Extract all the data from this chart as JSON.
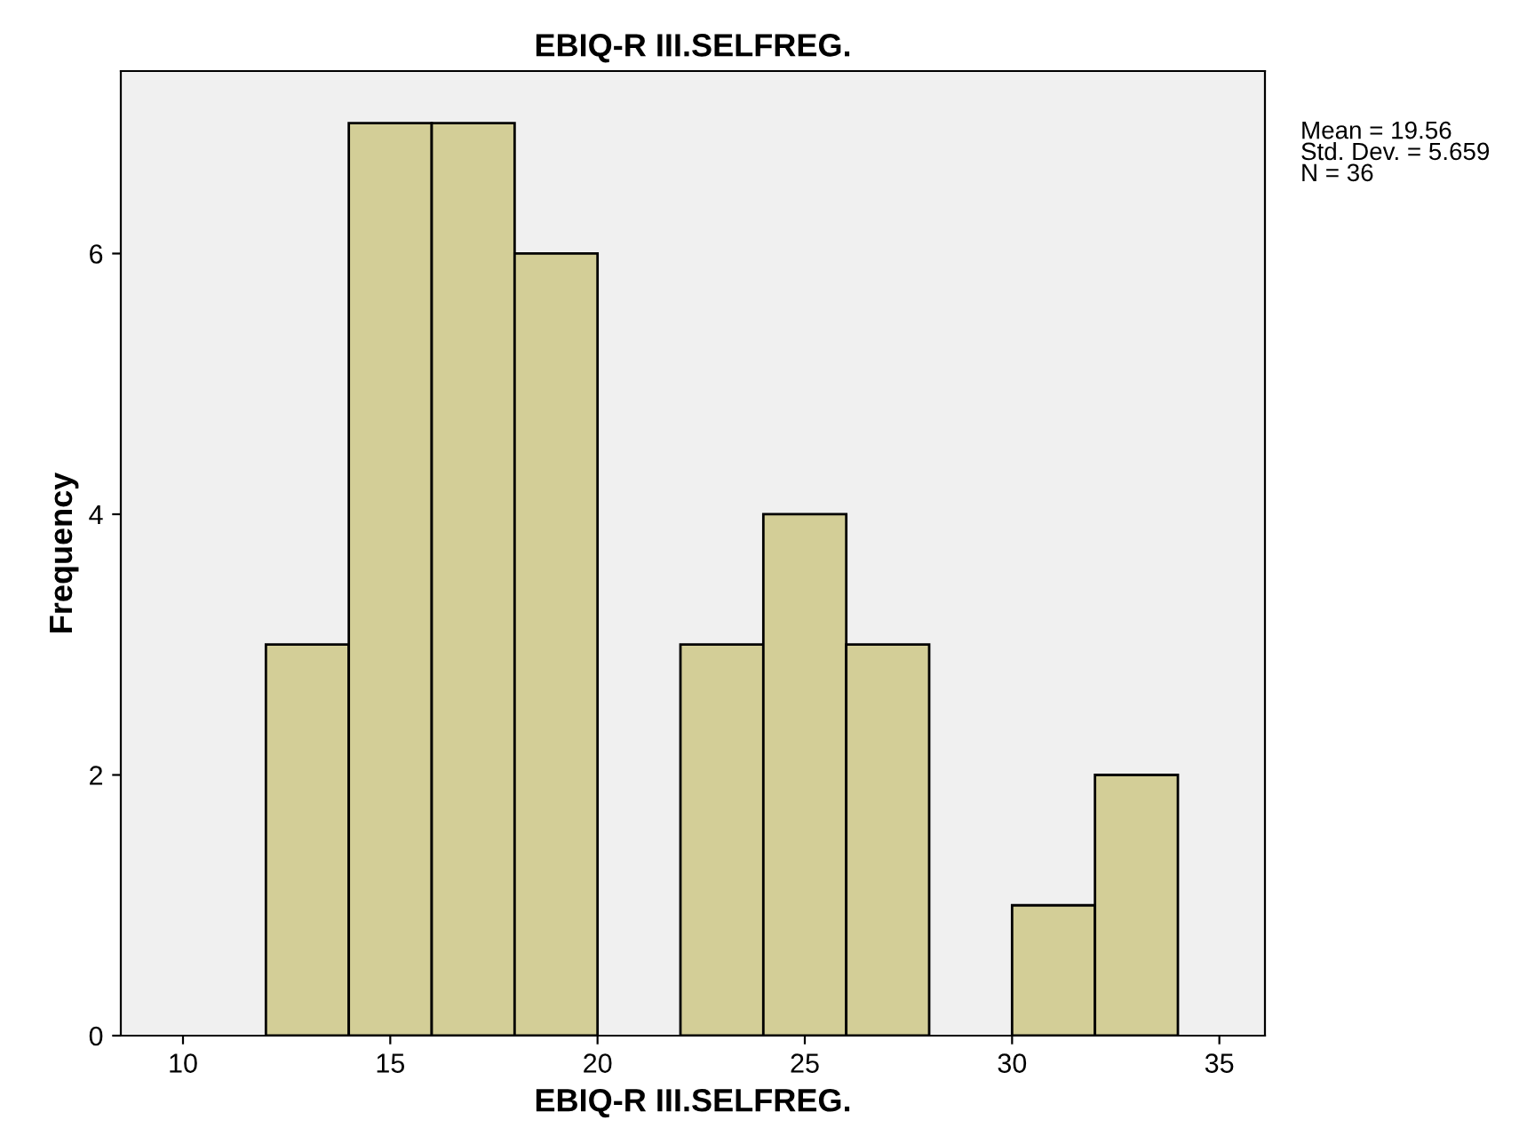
{
  "chart_data": {
    "type": "histogram",
    "title": "EBIQ-R III.SELFREG.",
    "xlabel": "EBIQ-R III.SELFREG.",
    "ylabel": "Frequency",
    "bins": [
      12,
      14,
      16,
      18,
      20,
      22,
      24,
      26,
      28,
      30,
      32,
      34
    ],
    "values": [
      3,
      7,
      7,
      6,
      0,
      3,
      4,
      3,
      0,
      1,
      2
    ],
    "color": "#d3ce97",
    "xlim": [
      8.5,
      36.1
    ],
    "xticks": [
      10,
      15,
      20,
      25,
      30,
      35
    ],
    "ylim": [
      0,
      7.4
    ],
    "yticks": [
      0,
      2,
      4,
      6
    ],
    "annotations": [
      "Mean = 19.56\nStd. Dev. = 5.659\nN = 36"
    ],
    "grid": false
  }
}
